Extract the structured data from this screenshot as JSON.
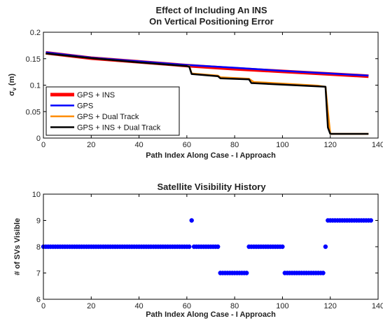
{
  "chart_data": [
    {
      "type": "line",
      "title": [
        "Effect of Including An INS",
        "On Vertical Positioning Error"
      ],
      "xlabel": "Path Index Along Case - I Approach",
      "ylabel_main": "σ",
      "ylabel_sub": "v",
      "ylabel_unit": "(m)",
      "xlim": [
        0,
        140
      ],
      "ylim": [
        0,
        0.2
      ],
      "xticks": [
        "0",
        "20",
        "40",
        "60",
        "80",
        "100",
        "120",
        "140"
      ],
      "yticks": [
        "0",
        "0.05",
        "0.1",
        "0.15",
        "0.2"
      ],
      "legend_position": "bottom-left",
      "series": [
        {
          "name": "GPS + INS",
          "color": "#ff0000",
          "x": [
            1,
            20,
            40,
            60,
            80,
            100,
            120,
            136
          ],
          "y": [
            0.161,
            0.151,
            0.144,
            0.137,
            0.131,
            0.126,
            0.121,
            0.117
          ]
        },
        {
          "name": "GPS",
          "color": "#0000ff",
          "x": [
            1,
            20,
            40,
            60,
            80,
            100,
            120,
            136
          ],
          "y": [
            0.162,
            0.152,
            0.145,
            0.138,
            0.133,
            0.127,
            0.122,
            0.118
          ]
        },
        {
          "name": "GPS + Dual Track",
          "color": "#ff8c00",
          "x": [
            1,
            20,
            40,
            60,
            61,
            62,
            73,
            74,
            86,
            88,
            100,
            115,
            118,
            119,
            120,
            136
          ],
          "y": [
            0.16,
            0.151,
            0.143,
            0.136,
            0.136,
            0.122,
            0.118,
            0.115,
            0.112,
            0.106,
            0.103,
            0.099,
            0.097,
            0.05,
            0.008,
            0.008
          ]
        },
        {
          "name": "GPS + INS + Dual Track",
          "color": "#000000",
          "x": [
            1,
            20,
            40,
            60,
            61,
            62,
            73,
            74,
            86,
            87,
            100,
            118,
            119,
            120,
            136
          ],
          "y": [
            0.16,
            0.151,
            0.143,
            0.136,
            0.135,
            0.121,
            0.117,
            0.113,
            0.111,
            0.104,
            0.101,
            0.097,
            0.02,
            0.008,
            0.008
          ]
        }
      ]
    },
    {
      "type": "scatter",
      "title": "Satellite Visibility History",
      "xlabel": "Path Index Along Case - I Approach",
      "ylabel": "# of SVs Visible",
      "xlim": [
        0,
        140
      ],
      "ylim": [
        6,
        10
      ],
      "xticks": [
        "0",
        "20",
        "40",
        "60",
        "80",
        "100",
        "120",
        "140"
      ],
      "yticks": [
        "6",
        "7",
        "8",
        "9",
        "10"
      ],
      "color": "#0000ff",
      "segments": [
        {
          "x_start": 0,
          "x_end": 61,
          "y": 8
        },
        {
          "x_start": 62,
          "x_end": 62,
          "y": 9
        },
        {
          "x_start": 63,
          "x_end": 73,
          "y": 8
        },
        {
          "x_start": 74,
          "x_end": 85,
          "y": 7
        },
        {
          "x_start": 86,
          "x_end": 100,
          "y": 8
        },
        {
          "x_start": 101,
          "x_end": 117,
          "y": 7
        },
        {
          "x_start": 118,
          "x_end": 118,
          "y": 8
        },
        {
          "x_start": 119,
          "x_end": 137,
          "y": 9
        }
      ]
    }
  ]
}
